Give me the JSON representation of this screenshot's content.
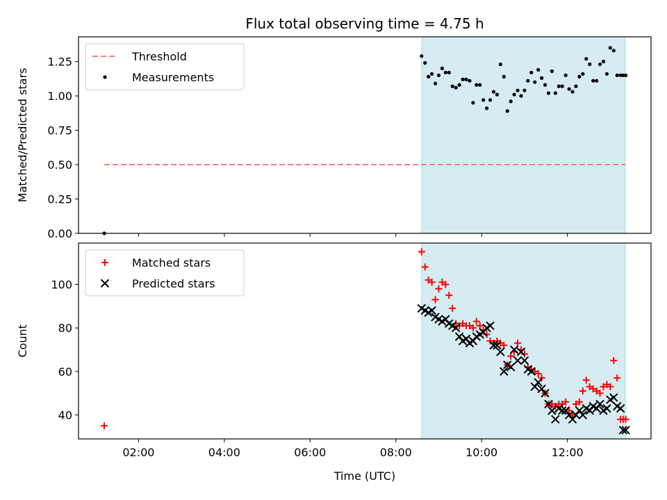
{
  "title": "Flux total observing time = 4.75 h",
  "colors": {
    "threshold": "#f08080",
    "measurements": "#000000",
    "matched": "#ff0000",
    "predicted": "#000000",
    "span_fill": "#add8e6"
  },
  "chart_data": [
    {
      "type": "scatter",
      "ylabel": "Matched/Predicted stars",
      "xlabel": "",
      "xlim": [
        0.6,
        13.95
      ],
      "ylim": [
        0.0,
        1.43
      ],
      "grid": false,
      "legend_position": "upper-left",
      "y_ticks": [
        {
          "value": 0.0,
          "label": "0.00"
        },
        {
          "value": 0.25,
          "label": "0.25"
        },
        {
          "value": 0.5,
          "label": "0.50"
        },
        {
          "value": 0.75,
          "label": "0.75"
        },
        {
          "value": 1.0,
          "label": "1.00"
        },
        {
          "value": 1.25,
          "label": "1.25"
        }
      ],
      "shaded_span": {
        "x0": 8.6,
        "x1": 13.35
      },
      "threshold": {
        "label": "Threshold",
        "y": 0.5,
        "x0": 1.2,
        "x1": 13.35
      },
      "series": [
        {
          "name": "Measurements",
          "x": [
            1.2,
            8.6,
            8.68,
            8.76,
            8.84,
            8.92,
            9.0,
            9.08,
            9.16,
            9.24,
            9.32,
            9.4,
            9.48,
            9.56,
            9.64,
            9.72,
            9.8,
            9.88,
            9.96,
            10.04,
            10.12,
            10.2,
            10.28,
            10.36,
            10.44,
            10.52,
            10.6,
            10.68,
            10.76,
            10.84,
            10.92,
            11.0,
            11.08,
            11.16,
            11.24,
            11.32,
            11.4,
            11.48,
            11.56,
            11.64,
            11.72,
            11.8,
            11.88,
            11.96,
            12.04,
            12.12,
            12.2,
            12.28,
            12.36,
            12.44,
            12.52,
            12.6,
            12.68,
            12.76,
            12.84,
            12.92,
            13.0,
            13.08,
            13.16,
            13.24,
            13.3,
            13.36
          ],
          "y": [
            0.0,
            1.29,
            1.24,
            1.14,
            1.16,
            1.09,
            1.15,
            1.2,
            1.17,
            1.17,
            1.07,
            1.06,
            1.08,
            1.12,
            1.12,
            1.11,
            0.95,
            1.08,
            1.08,
            0.97,
            0.91,
            0.97,
            1.03,
            1.01,
            1.23,
            1.14,
            0.89,
            0.96,
            1.01,
            1.04,
            1.0,
            1.04,
            1.11,
            1.17,
            1.1,
            1.19,
            1.13,
            1.08,
            1.02,
            1.18,
            1.02,
            1.07,
            1.07,
            1.15,
            1.05,
            1.03,
            1.07,
            1.14,
            1.16,
            1.27,
            1.23,
            1.11,
            1.11,
            1.23,
            1.25,
            1.16,
            1.35,
            1.33,
            1.15,
            1.15,
            1.15,
            1.15
          ]
        }
      ]
    },
    {
      "type": "scatter",
      "ylabel": "Count",
      "xlabel": "Time (UTC)",
      "xlim": [
        0.6,
        13.95
      ],
      "ylim": [
        29,
        119
      ],
      "grid": false,
      "legend_position": "upper-left",
      "x_ticks": [
        {
          "value": 2,
          "label": "02:00"
        },
        {
          "value": 4,
          "label": "04:00"
        },
        {
          "value": 6,
          "label": "06:00"
        },
        {
          "value": 8,
          "label": "08:00"
        },
        {
          "value": 10,
          "label": "10:00"
        },
        {
          "value": 12,
          "label": "12:00"
        }
      ],
      "y_ticks": [
        {
          "value": 40,
          "label": "40"
        },
        {
          "value": 60,
          "label": "60"
        },
        {
          "value": 80,
          "label": "80"
        },
        {
          "value": 100,
          "label": "100"
        }
      ],
      "shaded_span": {
        "x0": 8.6,
        "x1": 13.35
      },
      "series": [
        {
          "name": "Matched stars",
          "marker": "plus",
          "x": [
            1.2,
            8.6,
            8.68,
            8.76,
            8.84,
            8.92,
            9.0,
            9.08,
            9.16,
            9.24,
            9.32,
            9.4,
            9.48,
            9.56,
            9.64,
            9.72,
            9.8,
            9.88,
            9.96,
            10.04,
            10.12,
            10.2,
            10.28,
            10.36,
            10.44,
            10.52,
            10.6,
            10.68,
            10.76,
            10.84,
            10.92,
            11.0,
            11.08,
            11.16,
            11.24,
            11.32,
            11.4,
            11.48,
            11.56,
            11.64,
            11.72,
            11.8,
            11.88,
            11.96,
            12.04,
            12.12,
            12.2,
            12.28,
            12.36,
            12.44,
            12.52,
            12.6,
            12.68,
            12.76,
            12.84,
            12.92,
            13.0,
            13.08,
            13.16,
            13.24,
            13.3,
            13.36
          ],
          "y": [
            35,
            115,
            108,
            102,
            101,
            93,
            98,
            101,
            100,
            95,
            89,
            82,
            81,
            82,
            81,
            81,
            80,
            83,
            81,
            79,
            77,
            74,
            73,
            74,
            73,
            72,
            63,
            67,
            69,
            73,
            70,
            68,
            62,
            61,
            60,
            59,
            57,
            50,
            45,
            45,
            44,
            45,
            45,
            46,
            42,
            40,
            45,
            46,
            51,
            56,
            53,
            52,
            51,
            50,
            53,
            54,
            53,
            65,
            57,
            38,
            38,
            38
          ]
        },
        {
          "name": "Predicted stars",
          "marker": "x",
          "x": [
            8.6,
            8.68,
            8.76,
            8.84,
            8.92,
            9.0,
            9.08,
            9.16,
            9.24,
            9.32,
            9.4,
            9.48,
            9.56,
            9.64,
            9.72,
            9.8,
            9.88,
            9.96,
            10.04,
            10.12,
            10.2,
            10.28,
            10.36,
            10.44,
            10.52,
            10.6,
            10.68,
            10.76,
            10.84,
            10.92,
            11.0,
            11.08,
            11.16,
            11.24,
            11.32,
            11.4,
            11.48,
            11.56,
            11.64,
            11.72,
            11.8,
            11.88,
            11.96,
            12.04,
            12.12,
            12.2,
            12.28,
            12.36,
            12.44,
            12.52,
            12.6,
            12.68,
            12.76,
            12.84,
            12.92,
            13.0,
            13.08,
            13.16,
            13.24,
            13.3,
            13.36
          ],
          "y": [
            89,
            88,
            87,
            88,
            85,
            84,
            83,
            84,
            82,
            81,
            80,
            76,
            74,
            75,
            73,
            74,
            76,
            77,
            78,
            80,
            81,
            72,
            72,
            69,
            60,
            63,
            62,
            70,
            65,
            69,
            65,
            61,
            60,
            53,
            55,
            52,
            50,
            45,
            42,
            38,
            43,
            42,
            42,
            40,
            38,
            40,
            42,
            40,
            43,
            42,
            44,
            43,
            45,
            42,
            43,
            47,
            48,
            44,
            43,
            33,
            33
          ]
        }
      ]
    }
  ]
}
